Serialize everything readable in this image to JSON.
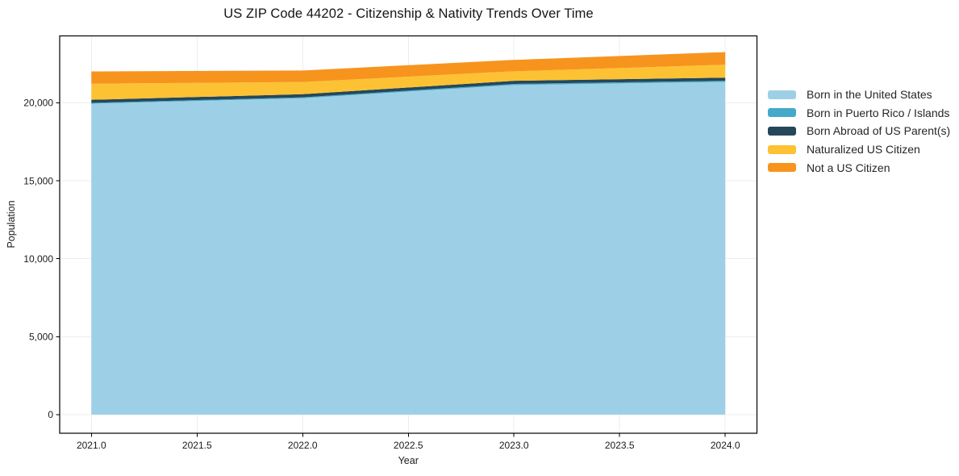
{
  "title": "US ZIP Code 44202 - Citizenship & Nativity Trends Over Time",
  "colors": {
    "background": "#ffffff",
    "grid": "#ededed",
    "spine": "#000000",
    "text": "#1a1a1a",
    "legend_text": "#262626"
  },
  "chart_data": {
    "type": "area",
    "stacked": true,
    "title": "US ZIP Code 44202 - Citizenship & Nativity Trends Over Time",
    "xlabel": "Year",
    "ylabel": "Population",
    "x": [
      2021,
      2022,
      2023,
      2024
    ],
    "series": [
      {
        "name": "Born in the United States",
        "color": "#9dd0e7",
        "values": [
          19950,
          20300,
          21150,
          21350
        ]
      },
      {
        "name": "Born in Puerto Rico / Islands",
        "color": "#45a9c9",
        "values": [
          50,
          60,
          70,
          70
        ]
      },
      {
        "name": "Born Abroad of US Parent(s)",
        "color": "#25475a",
        "values": [
          200,
          200,
          200,
          200
        ]
      },
      {
        "name": "Naturalized US Citizen",
        "color": "#fcc233",
        "values": [
          1030,
          780,
          610,
          830
        ]
      },
      {
        "name": "Not a US Citizen",
        "color": "#f7941e",
        "values": [
          790,
          740,
          730,
          810
        ]
      }
    ],
    "xticks": {
      "values": [
        2021.0,
        2021.5,
        2022.0,
        2022.5,
        2023.0,
        2023.5,
        2024.0
      ],
      "labels": [
        "2021.0",
        "2021.5",
        "2022.0",
        "2022.5",
        "2023.0",
        "2023.5",
        "2024.0"
      ]
    },
    "yticks": {
      "values": [
        0,
        5000,
        10000,
        15000,
        20000
      ],
      "labels": [
        "0",
        "5,000",
        "10,000",
        "15,000",
        "20,000"
      ]
    },
    "xlim": [
      2020.85,
      2024.15
    ],
    "ylim": [
      -1200,
      24300
    ],
    "grid": true,
    "legend_position": "right of plot, no frame"
  }
}
